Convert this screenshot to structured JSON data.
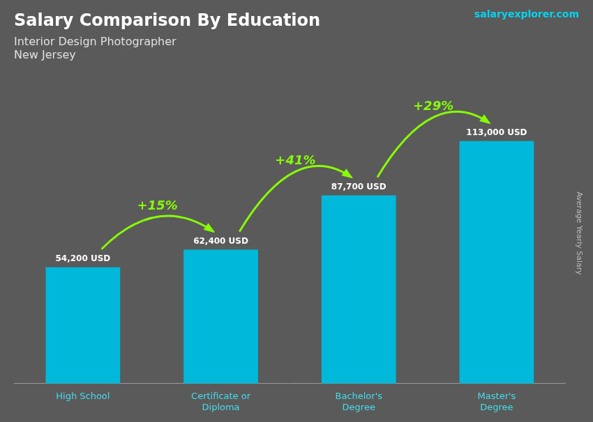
{
  "chart_data": {
    "type": "bar",
    "title": "Salary Comparison By Education",
    "subtitle": [
      "Interior Design Photographer",
      "New Jersey"
    ],
    "ylabel": "Average Yearly Salary",
    "categories": [
      "High School",
      "Certificate or\nDiploma",
      "Bachelor's\nDegree",
      "Master's\nDegree"
    ],
    "values": [
      54200,
      62400,
      87700,
      113000
    ],
    "value_labels": [
      "54,200 USD",
      "62,400 USD",
      "87,700 USD",
      "113,000 USD"
    ],
    "data_labels": true,
    "color": "#00b8d9",
    "ylim": [
      0,
      140000
    ],
    "tick_labels": "x",
    "grid": false,
    "annotations": [
      "+15%",
      "+41%",
      "+29%"
    ],
    "source": "salaryexplorer.com"
  }
}
